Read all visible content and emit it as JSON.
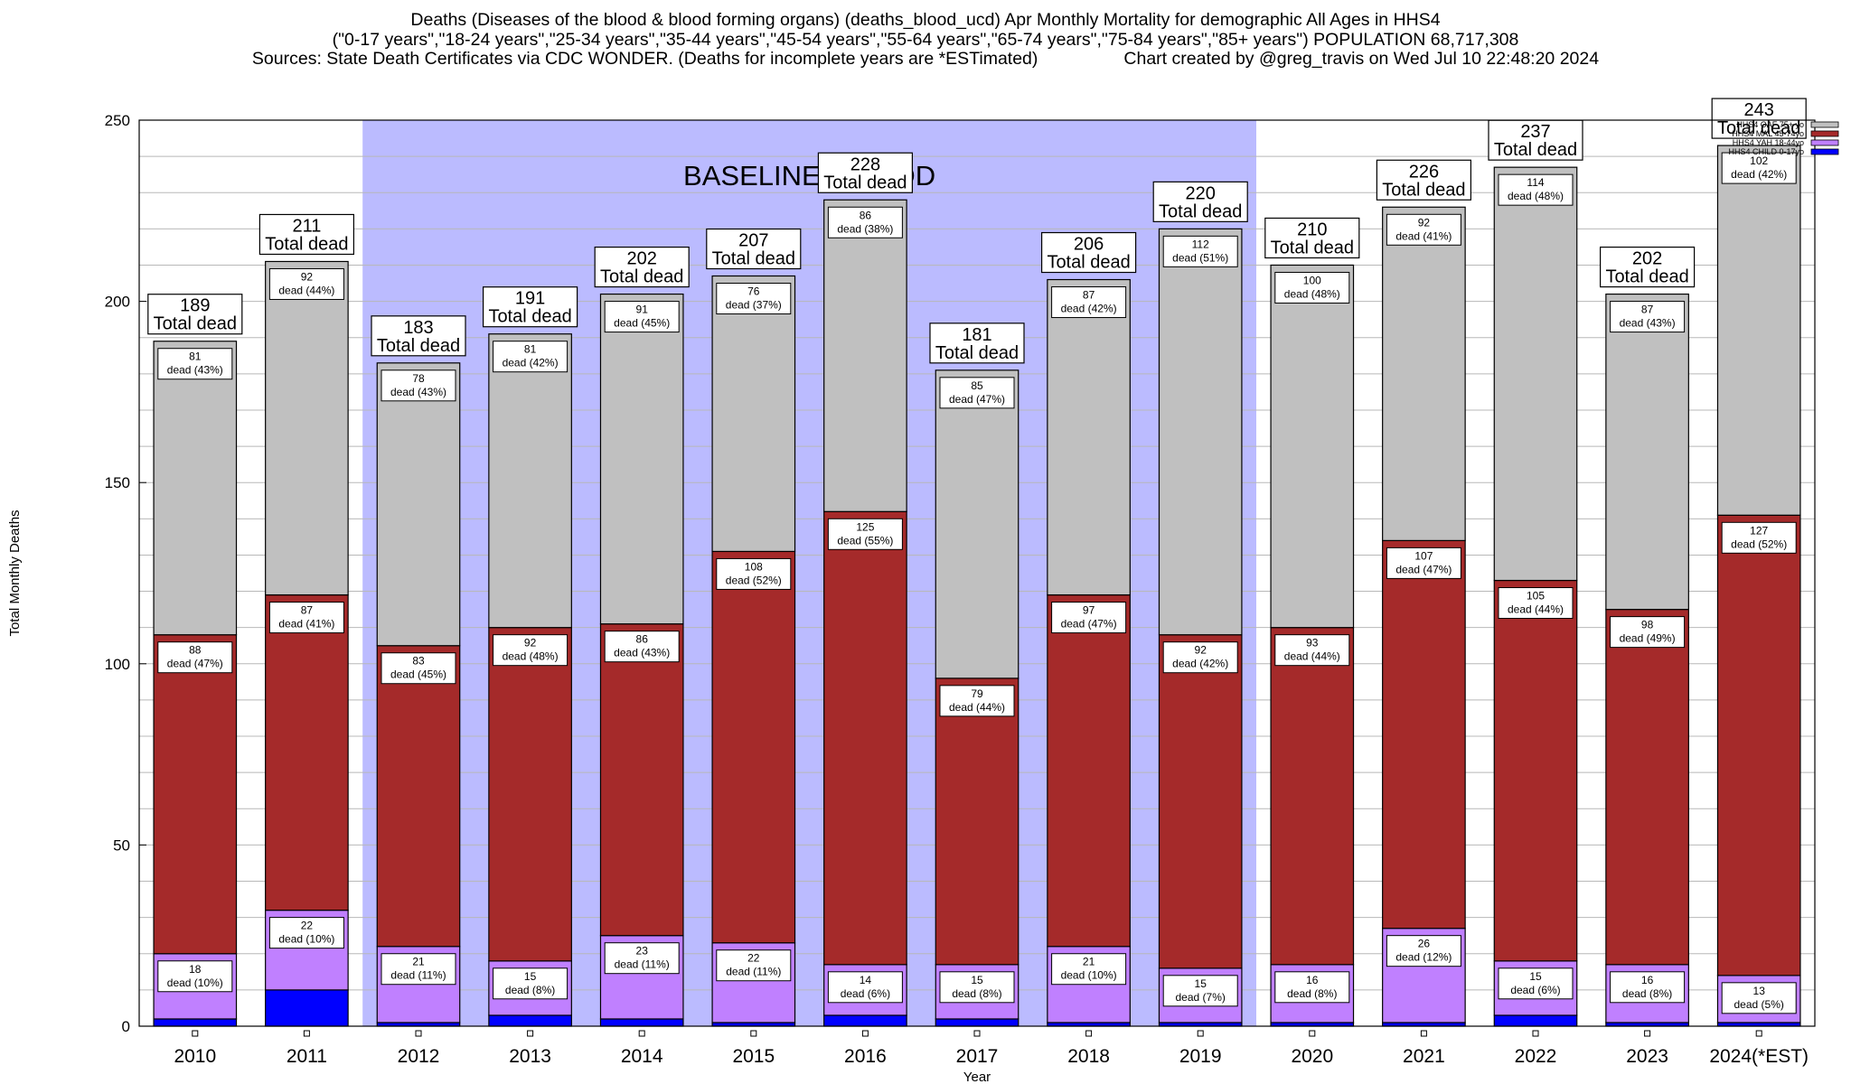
{
  "title": {
    "line1": "Deaths (Diseases of the blood & blood forming organs) (deaths_blood_ucd) Apr Monthly Mortality for demographic All Ages in HHS4",
    "line2": "(\"0-17 years\",\"18-24 years\",\"25-34 years\",\"35-44 years\",\"45-54 years\",\"55-64 years\",\"65-74 years\",\"75-84 years\",\"85+ years\") POPULATION 68,717,308",
    "line3_left": "Sources: State Death Certificates via CDC WONDER. (Deaths for incomplete years are *ESTimated)",
    "line3_right": "Chart created by @greg_travis on Wed Jul 10 22:48:20 2024"
  },
  "chart_data": {
    "type": "bar",
    "stacked": true,
    "xlabel": "Year",
    "ylabel": "Total Monthly Deaths",
    "ylim": [
      0,
      250
    ],
    "yticks": [
      0,
      50,
      100,
      150,
      200,
      250
    ],
    "grid": true,
    "legend_position": "top-right",
    "baseline_label": "BASELINE PERIOD",
    "baseline_range": [
      "2012",
      "2019"
    ],
    "categories": [
      "2010",
      "2011",
      "2012",
      "2013",
      "2014",
      "2015",
      "2016",
      "2017",
      "2018",
      "2019",
      "2020",
      "2021",
      "2022",
      "2023",
      "2024(*EST)"
    ],
    "series": [
      {
        "name": "HHS4 CHILD 0-17yo",
        "color": "#0000ff",
        "values": [
          2,
          10,
          1,
          3,
          2,
          1,
          3,
          2,
          1,
          1,
          1,
          1,
          3,
          1,
          1
        ]
      },
      {
        "name": "HHS4 YAH 18-44yo",
        "color": "#c080ff",
        "values": [
          18,
          22,
          21,
          15,
          23,
          22,
          14,
          15,
          21,
          15,
          16,
          26,
          15,
          16,
          13
        ]
      },
      {
        "name": "HHS4 MAL 45-74yo",
        "color": "#a52a2a",
        "values": [
          88,
          87,
          83,
          92,
          86,
          108,
          125,
          79,
          97,
          92,
          93,
          107,
          105,
          98,
          127
        ]
      },
      {
        "name": "HHS4 OAF 75+ yo",
        "color": "#c0c0c0",
        "values": [
          81,
          92,
          78,
          81,
          91,
          76,
          86,
          85,
          87,
          112,
          100,
          92,
          114,
          87,
          102
        ]
      }
    ],
    "segment_labels": {
      "HHS4 YAH 18-44yo": [
        [
          "18",
          "dead (10%)"
        ],
        [
          "22",
          "dead (10%)"
        ],
        [
          "21",
          "dead (11%)"
        ],
        [
          "15",
          "dead (8%)"
        ],
        [
          "23",
          "dead (11%)"
        ],
        [
          "22",
          "dead (11%)"
        ],
        [
          "14",
          "dead (6%)"
        ],
        [
          "15",
          "dead (8%)"
        ],
        [
          "21",
          "dead (10%)"
        ],
        [
          "15",
          "dead (7%)"
        ],
        [
          "16",
          "dead (8%)"
        ],
        [
          "26",
          "dead (12%)"
        ],
        [
          "15",
          "dead (6%)"
        ],
        [
          "16",
          "dead (8%)"
        ],
        [
          "13",
          "dead (5%)"
        ]
      ],
      "HHS4 MAL 45-74yo": [
        [
          "88",
          "dead (47%)"
        ],
        [
          "87",
          "dead (41%)"
        ],
        [
          "83",
          "dead (45%)"
        ],
        [
          "92",
          "dead (48%)"
        ],
        [
          "86",
          "dead (43%)"
        ],
        [
          "108",
          "dead (52%)"
        ],
        [
          "125",
          "dead (55%)"
        ],
        [
          "79",
          "dead (44%)"
        ],
        [
          "97",
          "dead (47%)"
        ],
        [
          "92",
          "dead (42%)"
        ],
        [
          "93",
          "dead (44%)"
        ],
        [
          "107",
          "dead (47%)"
        ],
        [
          "105",
          "dead (44%)"
        ],
        [
          "98",
          "dead (49%)"
        ],
        [
          "127",
          "dead (52%)"
        ]
      ],
      "HHS4 OAF 75+ yo": [
        [
          "81",
          "dead (43%)"
        ],
        [
          "92",
          "dead (44%)"
        ],
        [
          "78",
          "dead (43%)"
        ],
        [
          "81",
          "dead (42%)"
        ],
        [
          "91",
          "dead (45%)"
        ],
        [
          "76",
          "dead (37%)"
        ],
        [
          "86",
          "dead (38%)"
        ],
        [
          "85",
          "dead (47%)"
        ],
        [
          "87",
          "dead (42%)"
        ],
        [
          "112",
          "dead (51%)"
        ],
        [
          "100",
          "dead (48%)"
        ],
        [
          "92",
          "dead (41%)"
        ],
        [
          "114",
          "dead (48%)"
        ],
        [
          "87",
          "dead (43%)"
        ],
        [
          "102",
          "dead (42%)"
        ]
      ]
    },
    "totals": [
      189,
      211,
      183,
      191,
      202,
      207,
      228,
      181,
      206,
      220,
      210,
      226,
      237,
      202,
      243
    ],
    "total_suffix": "Total dead"
  }
}
